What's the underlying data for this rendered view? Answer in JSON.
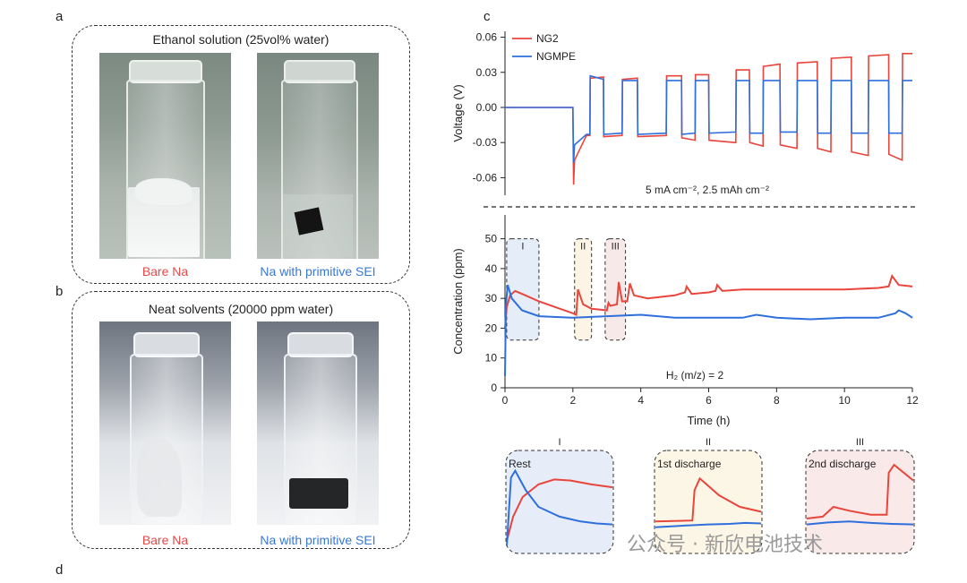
{
  "panels": {
    "a": {
      "label": "a",
      "title": "Ethanol solution (25vol% water)",
      "captions": [
        "Bare Na",
        "Na with primitive SEI"
      ]
    },
    "b": {
      "label": "b",
      "title": "Neat solvents (20000 ppm water)",
      "captions": [
        "Bare Na",
        "Na with primitive SEI"
      ]
    },
    "c": {
      "label": "c"
    },
    "d": {
      "label": "d"
    }
  },
  "colors": {
    "ng2": "#e8453c",
    "ngmpe": "#2f6fdc",
    "caption_red": "#e34a4a",
    "caption_blue": "#3a78d0"
  },
  "watermark": "公众号 · 新欣电池技术",
  "chart_data": [
    {
      "type": "line",
      "ylabel": "Voltage (V)",
      "xlim": [
        0,
        12
      ],
      "ylim": [
        -0.075,
        0.065
      ],
      "yticks": [
        "-0.06",
        "-0.03",
        "0.00",
        "0.03",
        "0.06"
      ],
      "ytick_values": [
        -0.06,
        -0.03,
        0,
        0.03,
        0.06
      ],
      "annotation": "5 mA cm⁻², 2.5 mAh cm⁻²",
      "legend": [
        "NG2",
        "NGMPE"
      ],
      "legend_position": "top-left",
      "series": [
        {
          "name": "NG2",
          "points": [
            [
              0,
              0
            ],
            [
              2,
              0
            ],
            [
              2.02,
              -0.066
            ],
            [
              2.05,
              -0.045
            ],
            [
              2.4,
              -0.024
            ],
            [
              2.5,
              -0.024
            ],
            [
              2.51,
              0.025
            ],
            [
              2.9,
              0.026
            ],
            [
              2.91,
              -0.025
            ],
            [
              3.45,
              -0.024
            ],
            [
              3.46,
              0.024
            ],
            [
              3.9,
              0.025
            ],
            [
              3.91,
              -0.025
            ],
            [
              4.75,
              -0.024
            ],
            [
              4.76,
              0.027
            ],
            [
              5.2,
              0.027
            ],
            [
              5.21,
              -0.026
            ],
            [
              5.6,
              -0.028
            ],
            [
              5.61,
              0.028
            ],
            [
              6.0,
              0.028
            ],
            [
              6.01,
              -0.028
            ],
            [
              6.8,
              -0.03
            ],
            [
              6.81,
              0.032
            ],
            [
              7.2,
              0.032
            ],
            [
              7.21,
              -0.03
            ],
            [
              7.6,
              -0.033
            ],
            [
              7.61,
              0.035
            ],
            [
              8.1,
              0.037
            ],
            [
              8.11,
              -0.032
            ],
            [
              8.6,
              -0.035
            ],
            [
              8.61,
              0.038
            ],
            [
              9.2,
              0.039
            ],
            [
              9.21,
              -0.035
            ],
            [
              9.6,
              -0.038
            ],
            [
              9.61,
              0.042
            ],
            [
              10.2,
              0.043
            ],
            [
              10.21,
              -0.038
            ],
            [
              10.7,
              -0.041
            ],
            [
              10.71,
              0.044
            ],
            [
              11.3,
              0.045
            ],
            [
              11.31,
              -0.04
            ],
            [
              11.7,
              -0.045
            ],
            [
              11.71,
              0.046
            ],
            [
              12,
              0.046
            ]
          ]
        },
        {
          "name": "NGMPE",
          "points": [
            [
              0,
              0
            ],
            [
              2,
              0
            ],
            [
              2.02,
              -0.047
            ],
            [
              2.05,
              -0.032
            ],
            [
              2.4,
              -0.023
            ],
            [
              2.5,
              -0.023
            ],
            [
              2.51,
              0.027
            ],
            [
              2.9,
              0.024
            ],
            [
              2.91,
              -0.023
            ],
            [
              3.45,
              -0.022
            ],
            [
              3.46,
              0.023
            ],
            [
              3.9,
              0.023
            ],
            [
              3.91,
              -0.023
            ],
            [
              4.75,
              -0.022
            ],
            [
              4.76,
              0.023
            ],
            [
              5.2,
              0.023
            ],
            [
              5.21,
              -0.023
            ],
            [
              5.6,
              -0.022
            ],
            [
              5.61,
              0.023
            ],
            [
              6.0,
              0.023
            ],
            [
              6.01,
              -0.022
            ],
            [
              6.8,
              -0.021
            ],
            [
              6.81,
              0.023
            ],
            [
              7.2,
              0.023
            ],
            [
              7.21,
              -0.022
            ],
            [
              7.6,
              -0.022
            ],
            [
              7.61,
              0.023
            ],
            [
              8.1,
              0.023
            ],
            [
              8.11,
              -0.021
            ],
            [
              8.6,
              -0.021
            ],
            [
              8.61,
              0.023
            ],
            [
              9.2,
              0.023
            ],
            [
              9.21,
              -0.022
            ],
            [
              9.6,
              -0.022
            ],
            [
              9.61,
              0.023
            ],
            [
              10.2,
              0.023
            ],
            [
              10.21,
              -0.022
            ],
            [
              10.7,
              -0.022
            ],
            [
              10.71,
              0.023
            ],
            [
              11.3,
              0.023
            ],
            [
              11.31,
              -0.022
            ],
            [
              11.7,
              -0.022
            ],
            [
              11.71,
              0.023
            ],
            [
              12,
              0.023
            ]
          ]
        }
      ]
    },
    {
      "type": "line",
      "xlabel": "Time (h)",
      "ylabel": "Concentration (ppm)",
      "xlim": [
        0,
        12
      ],
      "ylim": [
        0,
        58
      ],
      "xticks": [
        "0",
        "2",
        "4",
        "6",
        "8",
        "10",
        "12"
      ],
      "xtick_values": [
        0,
        2,
        4,
        6,
        8,
        10,
        12
      ],
      "yticks": [
        "0",
        "10",
        "20",
        "30",
        "40",
        "50"
      ],
      "ytick_values": [
        0,
        10,
        20,
        30,
        40,
        50
      ],
      "annotation": "H₂ (m/z) = 2",
      "regions": [
        {
          "label": "I",
          "x": [
            0.05,
            1.0
          ],
          "y": [
            16,
            50
          ]
        },
        {
          "label": "II",
          "x": [
            2.05,
            2.55
          ],
          "y": [
            16,
            50
          ]
        },
        {
          "label": "III",
          "x": [
            2.95,
            3.55
          ],
          "y": [
            16,
            50
          ]
        }
      ],
      "series": [
        {
          "name": "NG2",
          "points": [
            [
              0,
              20
            ],
            [
              0.05,
              27
            ],
            [
              0.15,
              31
            ],
            [
              0.3,
              32.5
            ],
            [
              0.6,
              31
            ],
            [
              1.0,
              29
            ],
            [
              1.5,
              27
            ],
            [
              2.0,
              25
            ],
            [
              2.1,
              24.5
            ],
            [
              2.15,
              33
            ],
            [
              2.3,
              28
            ],
            [
              2.55,
              26.5
            ],
            [
              3.0,
              26
            ],
            [
              3.05,
              28.5
            ],
            [
              3.1,
              27.5
            ],
            [
              3.3,
              28
            ],
            [
              3.35,
              35.5
            ],
            [
              3.45,
              29
            ],
            [
              3.6,
              29
            ],
            [
              3.68,
              35
            ],
            [
              3.8,
              31
            ],
            [
              4.2,
              30
            ],
            [
              5.0,
              31
            ],
            [
              5.3,
              32
            ],
            [
              5.35,
              34
            ],
            [
              5.5,
              31.5
            ],
            [
              6.0,
              32
            ],
            [
              6.2,
              32.5
            ],
            [
              6.25,
              34.5
            ],
            [
              6.4,
              32.5
            ],
            [
              7.0,
              33
            ],
            [
              8.0,
              33
            ],
            [
              9.0,
              33
            ],
            [
              10.0,
              33
            ],
            [
              11.0,
              33.5
            ],
            [
              11.3,
              34
            ],
            [
              11.4,
              37.5
            ],
            [
              11.6,
              34.5
            ],
            [
              12,
              34
            ]
          ]
        },
        {
          "name": "NGMPE",
          "points": [
            [
              0,
              4
            ],
            [
              0.03,
              28
            ],
            [
              0.08,
              34.5
            ],
            [
              0.2,
              30
            ],
            [
              0.5,
              26
            ],
            [
              1.0,
              24
            ],
            [
              2.0,
              23.5
            ],
            [
              3.0,
              24
            ],
            [
              4.0,
              24.5
            ],
            [
              5.0,
              23.5
            ],
            [
              6.0,
              23.5
            ],
            [
              7.0,
              23.5
            ],
            [
              7.4,
              24.5
            ],
            [
              8.0,
              23.5
            ],
            [
              9.0,
              23
            ],
            [
              10.0,
              23.5
            ],
            [
              11.0,
              23.5
            ],
            [
              11.5,
              25
            ],
            [
              11.6,
              26
            ],
            [
              11.8,
              25
            ],
            [
              12,
              23.5
            ]
          ]
        }
      ]
    },
    {
      "type": "line",
      "title": "I",
      "annotation": "Rest",
      "series": [
        {
          "name": "NG2",
          "points": [
            [
              0,
              10
            ],
            [
              0.06,
              35
            ],
            [
              0.15,
              55
            ],
            [
              0.3,
              68
            ],
            [
              0.45,
              73
            ],
            [
              0.6,
              72
            ],
            [
              0.8,
              68
            ],
            [
              1,
              65
            ]
          ]
        },
        {
          "name": "NGMPE",
          "points": [
            [
              0,
              5
            ],
            [
              0.04,
              75
            ],
            [
              0.08,
              82
            ],
            [
              0.18,
              62
            ],
            [
              0.3,
              45
            ],
            [
              0.5,
              35
            ],
            [
              0.7,
              30
            ],
            [
              0.85,
              28
            ],
            [
              1,
              27
            ]
          ]
        }
      ]
    },
    {
      "type": "line",
      "title": "II",
      "annotation": "1st discharge",
      "series": [
        {
          "name": "NG2",
          "points": [
            [
              0,
              30
            ],
            [
              0.35,
              31
            ],
            [
              0.37,
              62
            ],
            [
              0.42,
              74
            ],
            [
              0.6,
              57
            ],
            [
              0.8,
              45
            ],
            [
              1,
              40
            ]
          ]
        },
        {
          "name": "NGMPE",
          "points": [
            [
              0,
              24
            ],
            [
              0.3,
              26
            ],
            [
              0.5,
              27
            ],
            [
              0.7,
              27.5
            ],
            [
              0.85,
              28.5
            ],
            [
              1,
              28
            ]
          ]
        }
      ]
    },
    {
      "type": "line",
      "title": "III",
      "annotation": "2nd discharge",
      "series": [
        {
          "name": "NG2",
          "points": [
            [
              0,
              33
            ],
            [
              0.15,
              35
            ],
            [
              0.25,
              45
            ],
            [
              0.4,
              41
            ],
            [
              0.6,
              37
            ],
            [
              0.75,
              37
            ],
            [
              0.77,
              80
            ],
            [
              0.82,
              88
            ],
            [
              1,
              72
            ]
          ]
        },
        {
          "name": "NGMPE",
          "points": [
            [
              0,
              27
            ],
            [
              0.2,
              29
            ],
            [
              0.4,
              30
            ],
            [
              0.6,
              28.5
            ],
            [
              0.8,
              27.5
            ],
            [
              1,
              27
            ]
          ]
        }
      ]
    }
  ]
}
